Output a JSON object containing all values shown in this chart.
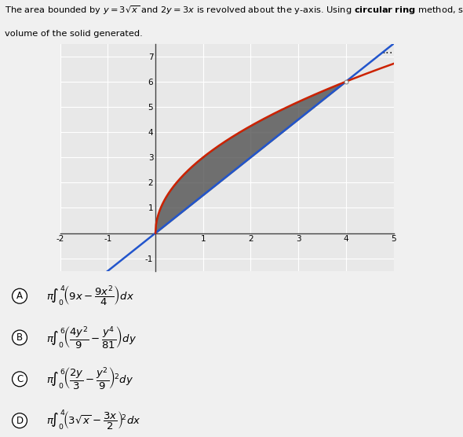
{
  "graph_bg": "#e8e8e8",
  "graph_xlim": [
    -2,
    5
  ],
  "graph_ylim": [
    -1.5,
    7.5
  ],
  "grid_color": "#ffffff",
  "shade_color": "#555555",
  "curve_sqrt_color": "#cc2200",
  "line_color": "#2255cc",
  "fig_bg": "#f0f0f0",
  "option_bg": "#e0e0e0",
  "title_line1": "The area bounded by $y=3\\sqrt{x}$ and $2y=3x$ is revolved about the y-axis. Using \\textbf{circular ring} method, set up the integral for the",
  "title_line2": "volume of the solid generated.",
  "options": [
    {
      "label": "A",
      "expr": "$\\pi\\!\\int_{0}^{4}\\!\\left(9x-\\dfrac{9x^2}{4}\\right)dx$"
    },
    {
      "label": "B",
      "expr": "$\\pi\\!\\int_{0}^{6}\\!\\left(\\dfrac{4y^2}{9}-\\dfrac{y^4}{81}\\right)dy$"
    },
    {
      "label": "C",
      "expr": "$\\pi\\!\\int_{0}^{6}\\!\\left(\\dfrac{2y}{3}-\\dfrac{y^2}{9}\\right)^{\\!2}dy$"
    },
    {
      "label": "D",
      "expr": "$\\pi\\!\\int_{0}^{4}\\!\\left(3\\sqrt{x}-\\dfrac{3x}{2}\\right)^{\\!2}dx$"
    }
  ]
}
